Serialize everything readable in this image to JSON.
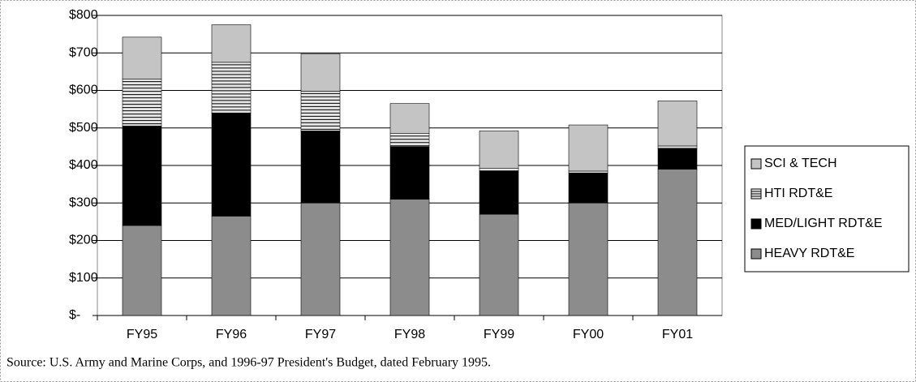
{
  "chart_data": {
    "type": "bar",
    "stacked": true,
    "categories": [
      "FY95",
      "FY96",
      "FY97",
      "FY98",
      "FY99",
      "FY00",
      "FY01"
    ],
    "series": [
      {
        "name": "HEAVY RDT&E",
        "color": "#8c8c8c",
        "values": [
          240,
          265,
          300,
          310,
          270,
          300,
          390
        ]
      },
      {
        "name": "MED/LIGHT RDT&E",
        "color": "#000000",
        "values": [
          265,
          275,
          192,
          140,
          115,
          80,
          55
        ]
      },
      {
        "name": "HTI RDT&E",
        "color": "#e6e6e6",
        "values": [
          125,
          135,
          106,
          35,
          7,
          5,
          7
        ]
      },
      {
        "name": "SCI & TECH",
        "color": "#c4c4c4",
        "values": [
          112,
          100,
          100,
          80,
          100,
          123,
          120
        ]
      }
    ],
    "ylim": [
      0,
      800
    ],
    "yticks": [
      {
        "value": 0,
        "label": "$-"
      },
      {
        "value": 100,
        "label": "$100"
      },
      {
        "value": 200,
        "label": "$200"
      },
      {
        "value": 300,
        "label": "$300"
      },
      {
        "value": 400,
        "label": "$400"
      },
      {
        "value": 500,
        "label": "$500"
      },
      {
        "value": 600,
        "label": "$600"
      },
      {
        "value": 700,
        "label": "$700"
      },
      {
        "value": 800,
        "label": "$800"
      }
    ],
    "grid": true,
    "legend": "right",
    "source": "Source:  U.S. Army and Marine Corps, and 1996-97 President's Budget, dated February 1995."
  }
}
